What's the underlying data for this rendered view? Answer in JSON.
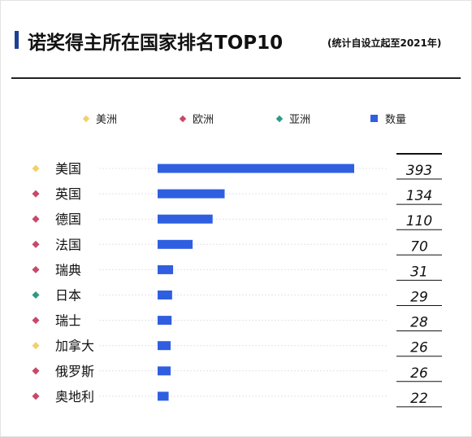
{
  "header": {
    "title": "诺奖得主所在国家排名TOP10",
    "subtitle": "(统计自设立起至2021年)"
  },
  "legend": [
    {
      "label": "美洲",
      "color": "#f2d16b",
      "shape": "diamond-icon"
    },
    {
      "label": "欧洲",
      "color": "#c8486b",
      "shape": "diamond-icon"
    },
    {
      "label": "亚洲",
      "color": "#2f9a86",
      "shape": "diamond-icon"
    },
    {
      "label": "数量",
      "color": "#2f5fe0",
      "shape": "square-icon"
    }
  ],
  "chart_data": {
    "type": "bar",
    "orientation": "horizontal",
    "categories": [
      "美国",
      "英国",
      "德国",
      "法国",
      "瑞典",
      "日本",
      "瑞士",
      "加拿大",
      "俄罗斯",
      "奥地利"
    ],
    "regions": [
      "美洲",
      "欧洲",
      "欧洲",
      "欧洲",
      "欧洲",
      "亚洲",
      "欧洲",
      "美洲",
      "欧洲",
      "欧洲"
    ],
    "series": [
      {
        "name": "数量",
        "values": [
          393,
          134,
          110,
          70,
          31,
          29,
          28,
          26,
          26,
          22
        ]
      }
    ],
    "value_labels": [
      "393",
      "134",
      "110",
      "70",
      "31",
      "29",
      "28",
      "26",
      "26",
      "22"
    ],
    "xlim": [
      0,
      393
    ],
    "bar_color": "#2f5fe0",
    "region_colors": {
      "美洲": "#f2d16b",
      "欧洲": "#c8486b",
      "亚洲": "#2f9a86"
    },
    "grid": false
  }
}
